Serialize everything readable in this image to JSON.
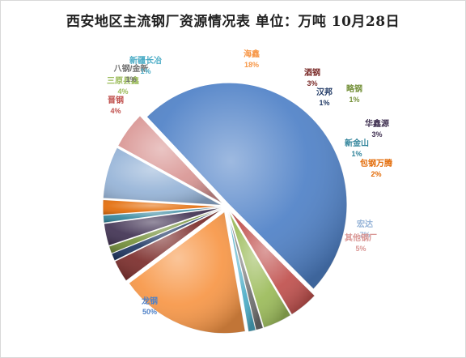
{
  "chart_data": {
    "type": "pie",
    "title": "西安地区主流钢厂资源情况表 单位：万吨 10月28日",
    "series": [
      {
        "name": "龙钢",
        "value": 50,
        "label": "50%",
        "color": "#4f81c7"
      },
      {
        "name": "晋钢",
        "value": 4,
        "label": "4%",
        "color": "#c0504d"
      },
      {
        "name": "三原县鑫",
        "value": 4,
        "label": "4%",
        "color": "#9bbb59"
      },
      {
        "name": "八钢/金新",
        "value": 1,
        "label": "1%",
        "color": "#6f6f6f"
      },
      {
        "name": "新疆长冶",
        "value": 1,
        "label": "1%",
        "color": "#4bacc6"
      },
      {
        "name": "海鑫",
        "value": 18,
        "label": "18%",
        "color": "#f79646"
      },
      {
        "name": "酒钢",
        "value": 3,
        "label": "3%",
        "color": "#7b2c2a"
      },
      {
        "name": "汉邦",
        "value": 1,
        "label": "1%",
        "color": "#1f3864"
      },
      {
        "name": "略钢",
        "value": 1,
        "label": "1%",
        "color": "#76923c"
      },
      {
        "name": "华鑫源",
        "value": 3,
        "label": "3%",
        "color": "#403152"
      },
      {
        "name": "新金山",
        "value": 1,
        "label": "1%",
        "color": "#31849b"
      },
      {
        "name": "包钢万腾",
        "value": 2,
        "label": "2%",
        "color": "#e36c09"
      },
      {
        "name": "宏达",
        "value": 7,
        "label": "7%",
        "color": "#95b3d7"
      },
      {
        "name": "其他钢厂",
        "value": 5,
        "label": "5%",
        "color": "#d99694"
      }
    ]
  }
}
